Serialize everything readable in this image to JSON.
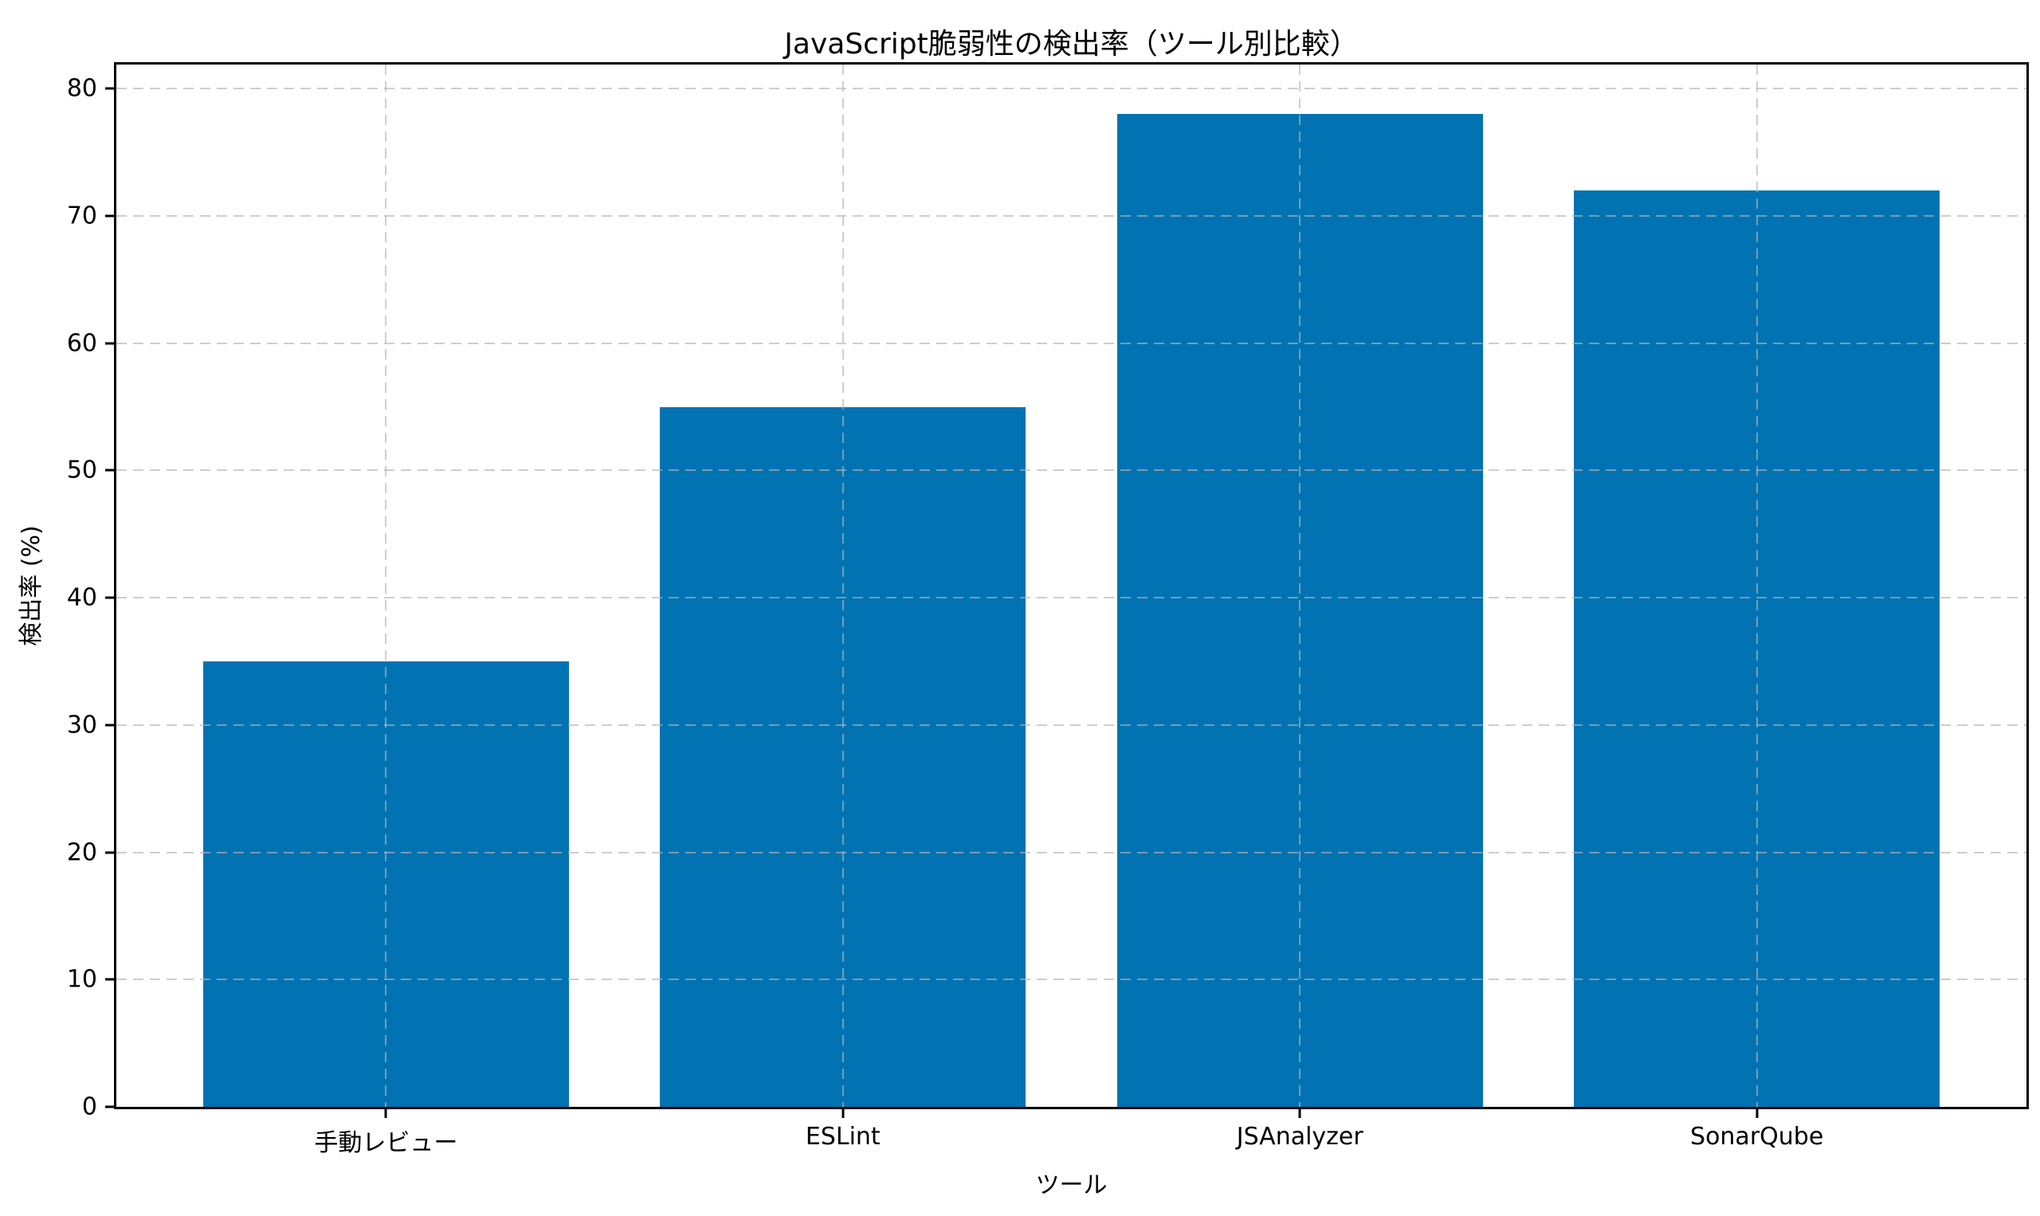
{
  "chart_data": {
    "type": "bar",
    "title": "JavaScript脆弱性の検出率（ツール別比較）",
    "xlabel": "ツール",
    "ylabel": "検出率 (%)",
    "categories": [
      "手動レビュー",
      "ESLint",
      "JSAnalyzer",
      "SonarQube"
    ],
    "values": [
      35,
      55,
      78,
      72
    ],
    "yticks": [
      0,
      10,
      20,
      30,
      40,
      50,
      60,
      70,
      80
    ],
    "ylim": [
      0,
      81.9
    ],
    "bar_color": "#0173b2",
    "bar_rel_width": 0.8,
    "grid": true,
    "grid_style": "dashed",
    "grid_color": "#b4b4b4",
    "spine_color": "#000000",
    "text_color": "#000000",
    "background": "#ffffff",
    "legend": "none"
  }
}
